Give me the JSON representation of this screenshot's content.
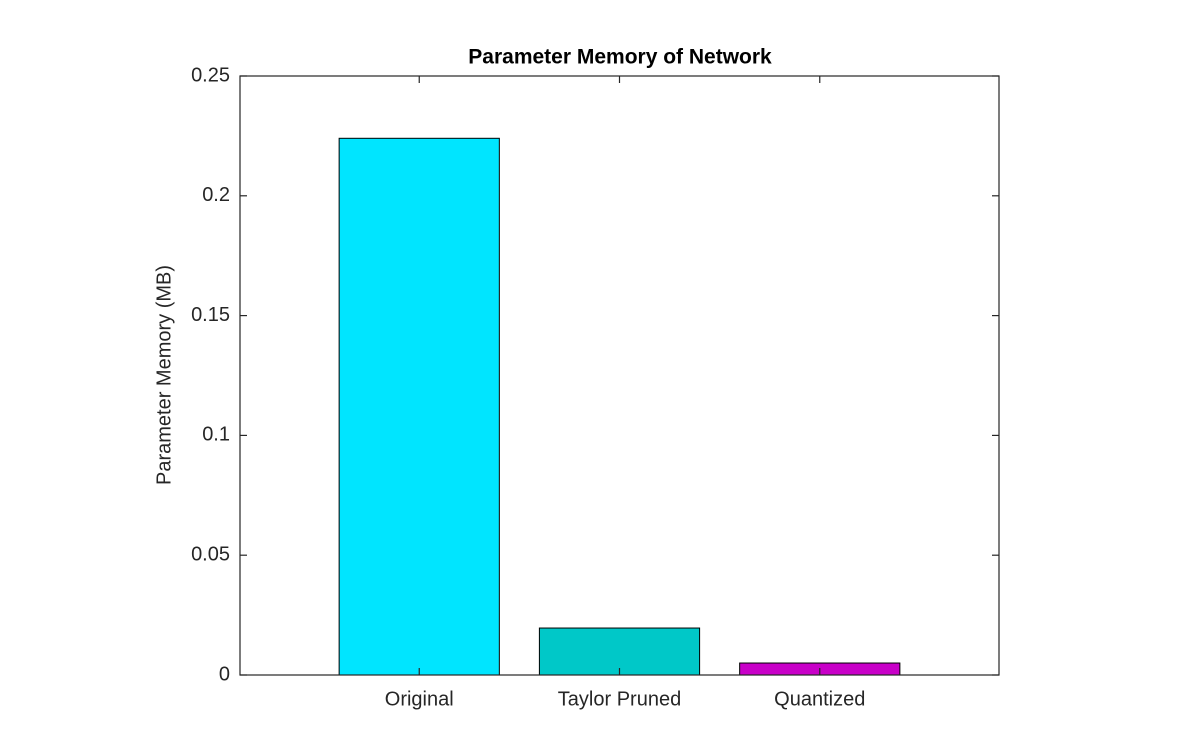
{
  "chart_data": {
    "type": "bar",
    "title": "Parameter Memory of Network",
    "y_label": "Parameter Memory (MB)",
    "categories": [
      "Original",
      "Taylor Pruned",
      "Quantized"
    ],
    "values": [
      0.224,
      0.0196,
      0.005
    ],
    "colors": [
      "#00e5ff",
      "#00c8c8",
      "#c800c8"
    ],
    "ylim": [
      0,
      0.25
    ],
    "yticks": [
      0,
      0.05,
      0.1,
      0.15,
      0.2,
      0.25
    ],
    "grid": false
  }
}
